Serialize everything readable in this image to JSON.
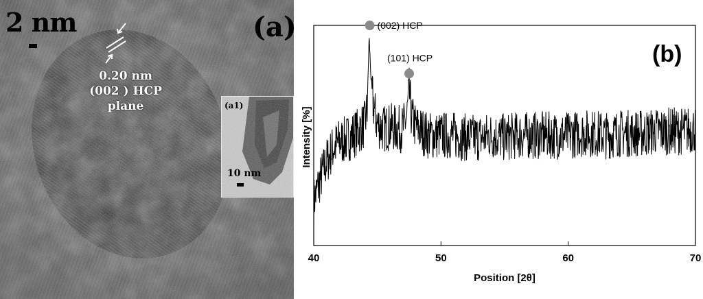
{
  "panel_a": {
    "label": "(a)",
    "scale_bar": "2 nm",
    "lattice_annotation": [
      "0.20 nm",
      "(002 ) HCP",
      "plane"
    ],
    "inset": {
      "label": "(a1)",
      "scale_bar": "10 nm"
    }
  },
  "panel_b": {
    "label": "(b)",
    "xlabel": "Position [2θ]",
    "ylabel": "Intensity   [%]",
    "peak_labels": [
      "(002) HCP",
      "(101) HCP"
    ]
  },
  "chart_data": {
    "type": "line",
    "title": "",
    "xlabel": "Position [2θ]",
    "ylabel": "Intensity [%]",
    "xlim": [
      40,
      70
    ],
    "ylim": [
      0,
      100
    ],
    "x_ticks": [
      40,
      50,
      60,
      70
    ],
    "y_ticks": [],
    "grid": false,
    "series": [
      {
        "x": [
          40,
          40.5,
          41,
          41.5,
          42,
          42.5,
          43,
          43.5,
          44,
          44.2,
          44.35,
          44.5,
          44.65,
          44.8,
          45,
          45.5,
          46,
          46.5,
          47,
          47.3,
          47.5,
          47.7,
          48,
          48.5,
          49,
          50,
          51,
          52,
          53,
          54,
          55,
          56,
          57,
          58,
          59,
          60,
          61,
          62,
          63,
          64,
          65,
          66,
          67,
          68,
          69,
          70
        ],
        "y": [
          20,
          30,
          38,
          44,
          47,
          48,
          50,
          52,
          55,
          62,
          95,
          76,
          66,
          60,
          55,
          53,
          54,
          53,
          53,
          58,
          70,
          58,
          54,
          52,
          50,
          50,
          50,
          49,
          49,
          50,
          49,
          50,
          50,
          50,
          50,
          50,
          51,
          51,
          50,
          51,
          51,
          51,
          52,
          52,
          52,
          53
        ]
      }
    ],
    "annotations": [
      {
        "text": "(002) HCP",
        "x": 44.4,
        "y": 95,
        "marker": "circle",
        "color": "#8a8a8a"
      },
      {
        "text": "(101) HCP",
        "x": 47.5,
        "y": 70,
        "marker": "circle",
        "color": "#8a8a8a"
      }
    ]
  }
}
